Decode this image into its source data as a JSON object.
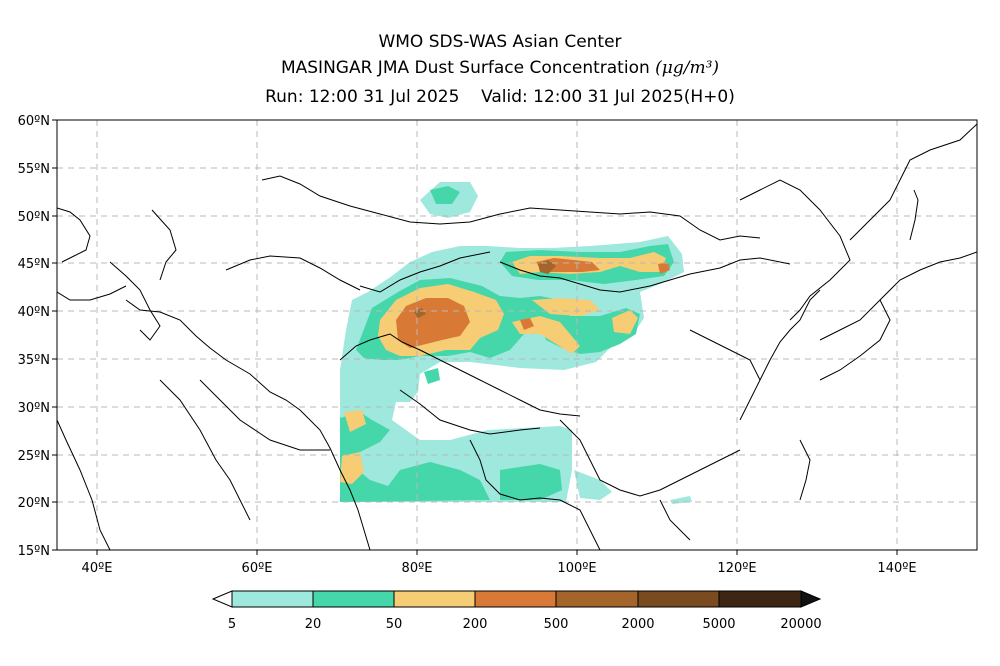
{
  "title": {
    "line1": "WMO SDS-WAS Asian Center",
    "line2": "MASINGAR JMA Dust Surface Concentration",
    "unit": "(μg/m³)",
    "run": "Run: 12:00 31 Jul 2025",
    "valid": "Valid: 12:00 31 Jul 2025(H+0)"
  },
  "axes": {
    "lon_labels": [
      "40ºE",
      "60ºE",
      "80ºE",
      "100ºE",
      "120ºE",
      "140ºE"
    ],
    "lat_labels": [
      "60ºN",
      "55ºN",
      "50ºN",
      "45ºN",
      "40ºN",
      "35ºN",
      "30ºN",
      "25ºN",
      "20ºN",
      "15ºN"
    ],
    "lon_range": [
      35,
      150
    ],
    "lat_range": [
      15,
      60
    ],
    "grid": "dashed"
  },
  "colorbar": {
    "labels": [
      "5",
      "20",
      "50",
      "200",
      "500",
      "2000",
      "5000",
      "20000"
    ],
    "colors": [
      "#9ee8dd",
      "#45d7a9",
      "#f6cd74",
      "#d97936",
      "#a4652a",
      "#7a4b1f",
      "#3e2615"
    ],
    "under": "open-triangle",
    "over": "#111111"
  },
  "chart_data": {
    "type": "heatmap",
    "variable": "Dust Surface Concentration",
    "levels": [
      5,
      20,
      50,
      200,
      500,
      2000,
      5000,
      20000
    ],
    "regions": [
      {
        "area": "Taklimakan / Tarim Basin (~78-86E, 37-42N)",
        "level_range": "50-500",
        "peak_level": "200-500"
      },
      {
        "area": "Qaidam Basin (~91-93E, 38N)",
        "level_range": "50-500"
      },
      {
        "area": "Gobi / southern Mongolia (~88-110E, 43-46N)",
        "level_range": "20-2000",
        "peak_level": "500-2000"
      },
      {
        "area": "Alxa / Inner Mongolia (~93-108E, 36-41N)",
        "level_range": "20-200"
      },
      {
        "area": "Thar Desert / NW India (~70-74E, 20-30N)",
        "level_range": "20-200"
      },
      {
        "area": "Indo-Gangetic & Bay of Bengal (~74-103E, 20-30N)",
        "level_range": "5-20"
      }
    ]
  }
}
